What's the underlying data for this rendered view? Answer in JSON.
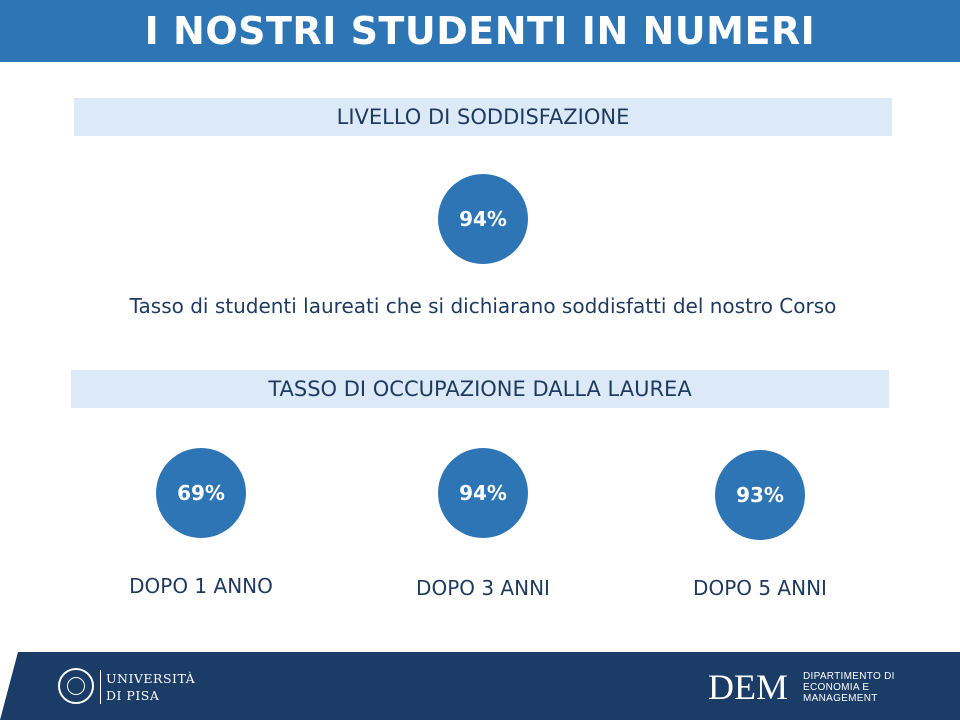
{
  "title": "I NOSTRI STUDENTI IN NUMERI",
  "satisfaction": {
    "heading": "LIVELLO DI SODDISFAZIONE",
    "value": "94%",
    "description": "Tasso di studenti laureati che si dichiarano soddisfatti del nostro Corso"
  },
  "employment": {
    "heading": "TASSO DI OCCUPAZIONE DALLA LAUREA",
    "items": [
      {
        "value": "69%",
        "label": "DOPO 1 ANNO"
      },
      {
        "value": "94%",
        "label": "DOPO 3 ANNI"
      },
      {
        "value": "93%",
        "label": "DOPO 5 ANNI"
      }
    ]
  },
  "footer": {
    "university_line1": "UNIVERSITÀ",
    "university_line2": "DI PISA",
    "dem_mark": "DEM",
    "dem_line1": "DIPARTIMENTO DI",
    "dem_line2": "ECONOMIA E",
    "dem_line3": "MANAGEMENT"
  },
  "colors": {
    "primary_blue": "#2e75b6",
    "band_light": "#dce9f6",
    "footer_navy": "#1a3c66",
    "text_dark": "#1f3a5f"
  }
}
